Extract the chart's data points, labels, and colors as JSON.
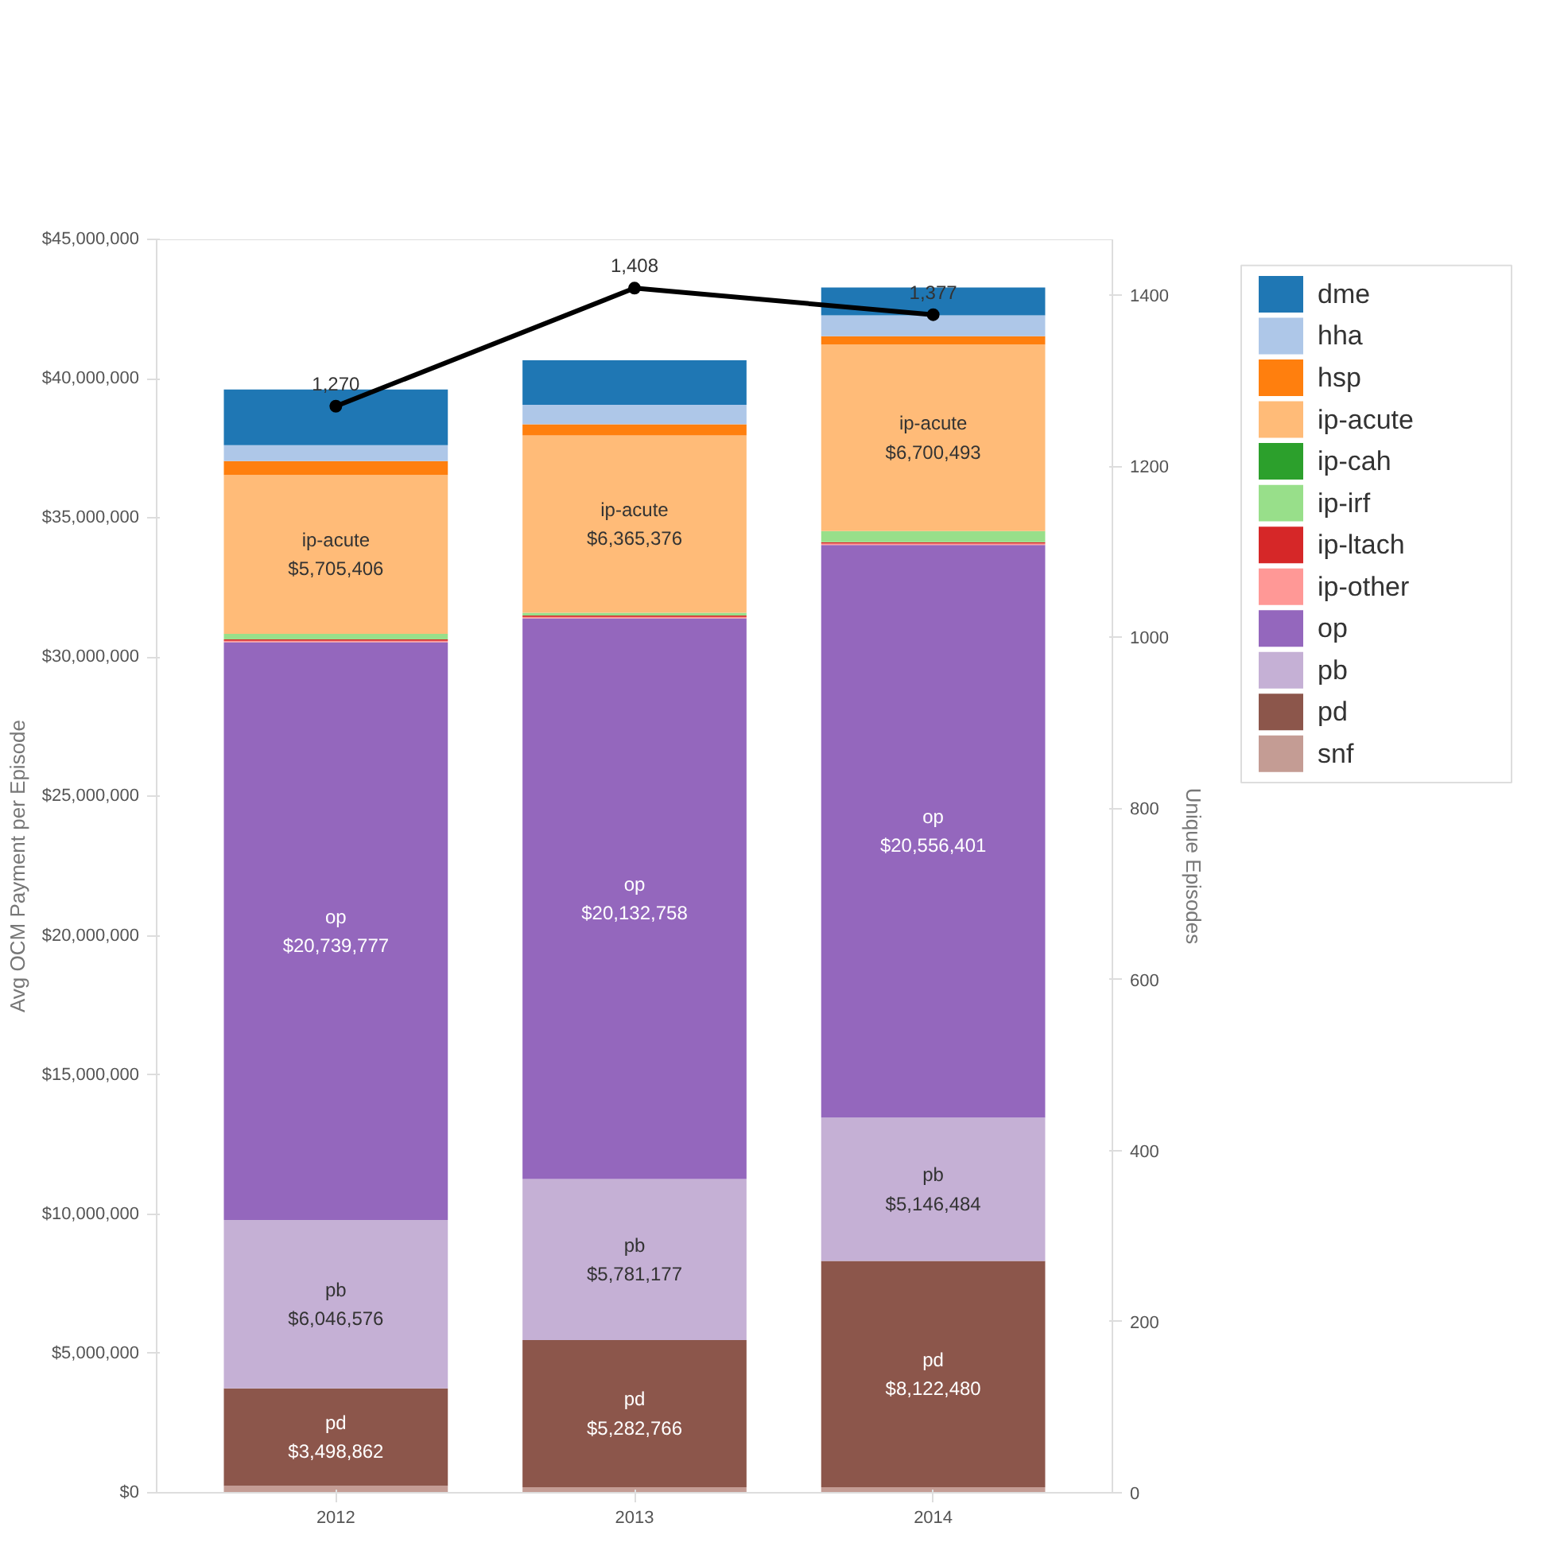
{
  "chart_data": {
    "type": "bar",
    "stacked": true,
    "categories": [
      "2012",
      "2013",
      "2014"
    ],
    "ylabel": "Avg OCM Payment per Episode",
    "y2label": "Unique Episodes",
    "ylim": [
      0,
      45000000
    ],
    "yticks": [
      {
        "value": 0,
        "label": "$0"
      },
      {
        "value": 5000000,
        "label": "$5,000,000"
      },
      {
        "value": 10000000,
        "label": "$10,000,000"
      },
      {
        "value": 15000000,
        "label": "$15,000,000"
      },
      {
        "value": 20000000,
        "label": "$20,000,000"
      },
      {
        "value": 25000000,
        "label": "$25,000,000"
      },
      {
        "value": 30000000,
        "label": "$30,000,000"
      },
      {
        "value": 35000000,
        "label": "$35,000,000"
      },
      {
        "value": 40000000,
        "label": "$40,000,000"
      },
      {
        "value": 45000000,
        "label": "$45,000,000"
      }
    ],
    "y2lim": [
      0,
      1465
    ],
    "y2ticks": [
      0,
      200,
      400,
      600,
      800,
      1000,
      1200,
      1400
    ],
    "grid": false,
    "legend": "right",
    "series": [
      {
        "name": "snf",
        "color": "#c49c94",
        "values": [
          250000,
          200000,
          200000
        ]
      },
      {
        "name": "pd",
        "color": "#8c564b",
        "values": [
          3498862,
          5282766,
          8122480
        ],
        "value_labels": [
          "$3,498,862",
          "$5,282,766",
          "$8,122,480"
        ]
      },
      {
        "name": "pb",
        "color": "#c5b0d5",
        "values": [
          6046576,
          5781177,
          5146484
        ],
        "value_labels": [
          "$6,046,576",
          "$5,781,177",
          "$5,146,484"
        ]
      },
      {
        "name": "op",
        "color": "#9467bd",
        "values": [
          20739777,
          20132758,
          20556401
        ],
        "value_labels": [
          "$20,739,777",
          "$20,132,758",
          "$20,556,401"
        ]
      },
      {
        "name": "ip-other",
        "color": "#ff9896",
        "values": [
          50000,
          50000,
          50000
        ]
      },
      {
        "name": "ip-ltach",
        "color": "#d62728",
        "values": [
          50000,
          50000,
          50000
        ]
      },
      {
        "name": "ip-irf",
        "color": "#98df8a",
        "values": [
          200000,
          100000,
          400000
        ]
      },
      {
        "name": "ip-cah",
        "color": "#2ca02c",
        "values": [
          0,
          0,
          0
        ]
      },
      {
        "name": "ip-acute",
        "color": "#ffbb78",
        "values": [
          5705406,
          6365376,
          6700493
        ],
        "value_labels": [
          "$5,705,406",
          "$6,365,376",
          "$6,700,493"
        ]
      },
      {
        "name": "hsp",
        "color": "#ff7f0e",
        "values": [
          500000,
          400000,
          300000
        ]
      },
      {
        "name": "hha",
        "color": "#aec7e8",
        "values": [
          570000,
          700000,
          750000
        ]
      },
      {
        "name": "dme",
        "color": "#1f77b4",
        "values": [
          2000000,
          1600000,
          1000000
        ]
      },
      {
        "type": "line",
        "axis": "y2",
        "color": "#000000",
        "marker": "circle",
        "values": [
          1270,
          1408,
          1377
        ],
        "value_labels": [
          "1,270",
          "1,408",
          "1,377"
        ]
      }
    ]
  }
}
